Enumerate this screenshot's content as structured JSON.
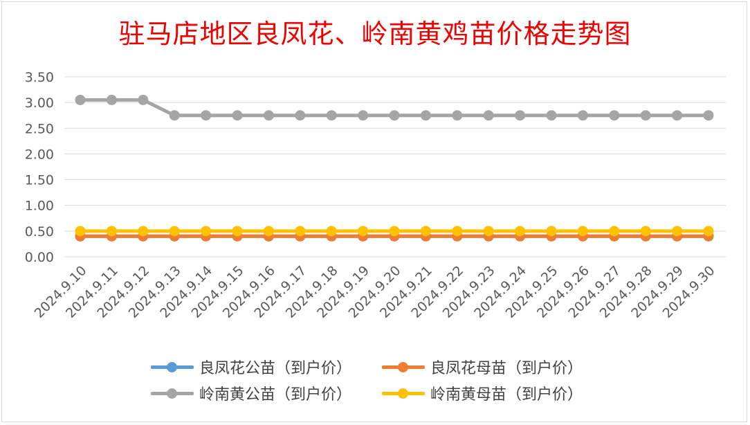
{
  "chart_data": {
    "type": "line",
    "title": "驻马店地区良凤花、岭南黄鸡苗价格走势图",
    "categories": [
      "2024.9.10",
      "2024.9.11",
      "2024.9.12",
      "2024.9.13",
      "2024.9.14",
      "2024.9.15",
      "2024.9.16",
      "2024.9.17",
      "2024.9.18",
      "2024.9.19",
      "2024.9.20",
      "2024.9.21",
      "2024.9.22",
      "2024.9.23",
      "2024.9.24",
      "2024.9.25",
      "2024.9.26",
      "2024.9.27",
      "2024.9.28",
      "2024.9.29",
      "2024.9.30"
    ],
    "y_ticks": [
      "0.00",
      "0.50",
      "1.00",
      "1.50",
      "2.00",
      "2.50",
      "3.00",
      "3.50"
    ],
    "ylim": [
      0,
      3.5
    ],
    "grid": true,
    "legend_position": "bottom",
    "series": [
      {
        "name": "良凤花公苗（到户价）",
        "color": "#5b9bd5",
        "values": [
          0.4,
          0.4,
          0.4,
          0.4,
          0.4,
          0.4,
          0.4,
          0.4,
          0.4,
          0.4,
          0.4,
          0.4,
          0.4,
          0.4,
          0.4,
          0.4,
          0.4,
          0.4,
          0.4,
          0.4,
          0.4
        ]
      },
      {
        "name": "良凤花母苗（到户价）",
        "color": "#ed7d31",
        "values": [
          0.4,
          0.4,
          0.4,
          0.4,
          0.4,
          0.4,
          0.4,
          0.4,
          0.4,
          0.4,
          0.4,
          0.4,
          0.4,
          0.4,
          0.4,
          0.4,
          0.4,
          0.4,
          0.4,
          0.4,
          0.4
        ]
      },
      {
        "name": "岭南黄公苗（到户价）",
        "color": "#a5a5a5",
        "values": [
          3.05,
          3.05,
          3.05,
          2.75,
          2.75,
          2.75,
          2.75,
          2.75,
          2.75,
          2.75,
          2.75,
          2.75,
          2.75,
          2.75,
          2.75,
          2.75,
          2.75,
          2.75,
          2.75,
          2.75,
          2.75
        ]
      },
      {
        "name": "岭南黄母苗（到户价）",
        "color": "#ffc000",
        "values": [
          0.5,
          0.5,
          0.5,
          0.5,
          0.5,
          0.5,
          0.5,
          0.5,
          0.5,
          0.5,
          0.5,
          0.5,
          0.5,
          0.5,
          0.5,
          0.5,
          0.5,
          0.5,
          0.5,
          0.5,
          0.5
        ]
      }
    ]
  }
}
